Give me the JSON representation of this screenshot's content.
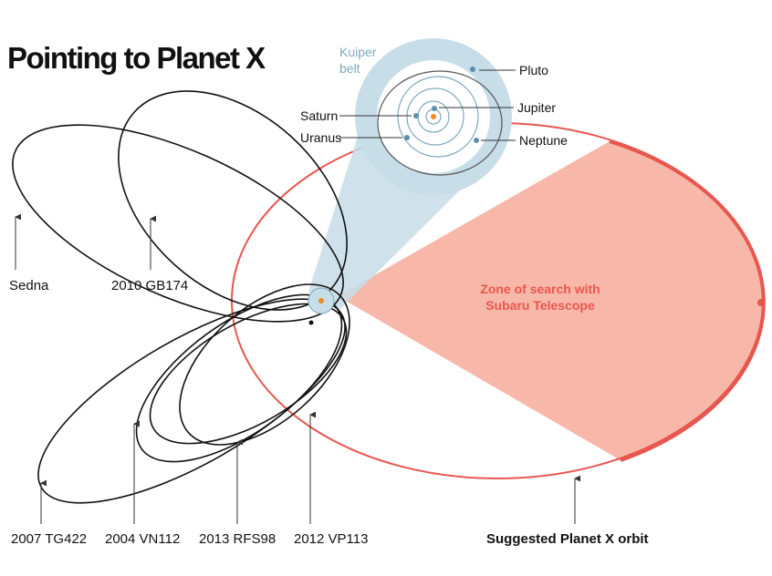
{
  "title": "Pointing to Planet X",
  "inset": {
    "kuiper_belt": [
      "Kuiper",
      "belt"
    ],
    "planets": [
      "Pluto",
      "Jupiter",
      "Saturn",
      "Uranus",
      "Neptune"
    ]
  },
  "zone": [
    "Zone of search with",
    "Subaru Telescope"
  ],
  "objects": [
    "Sedna",
    "2010 GB174",
    "2007 TG422",
    "2004 VN112",
    "2013 RFS98",
    "2012 VP113"
  ],
  "planet_x": "Suggested Planet X orbit"
}
